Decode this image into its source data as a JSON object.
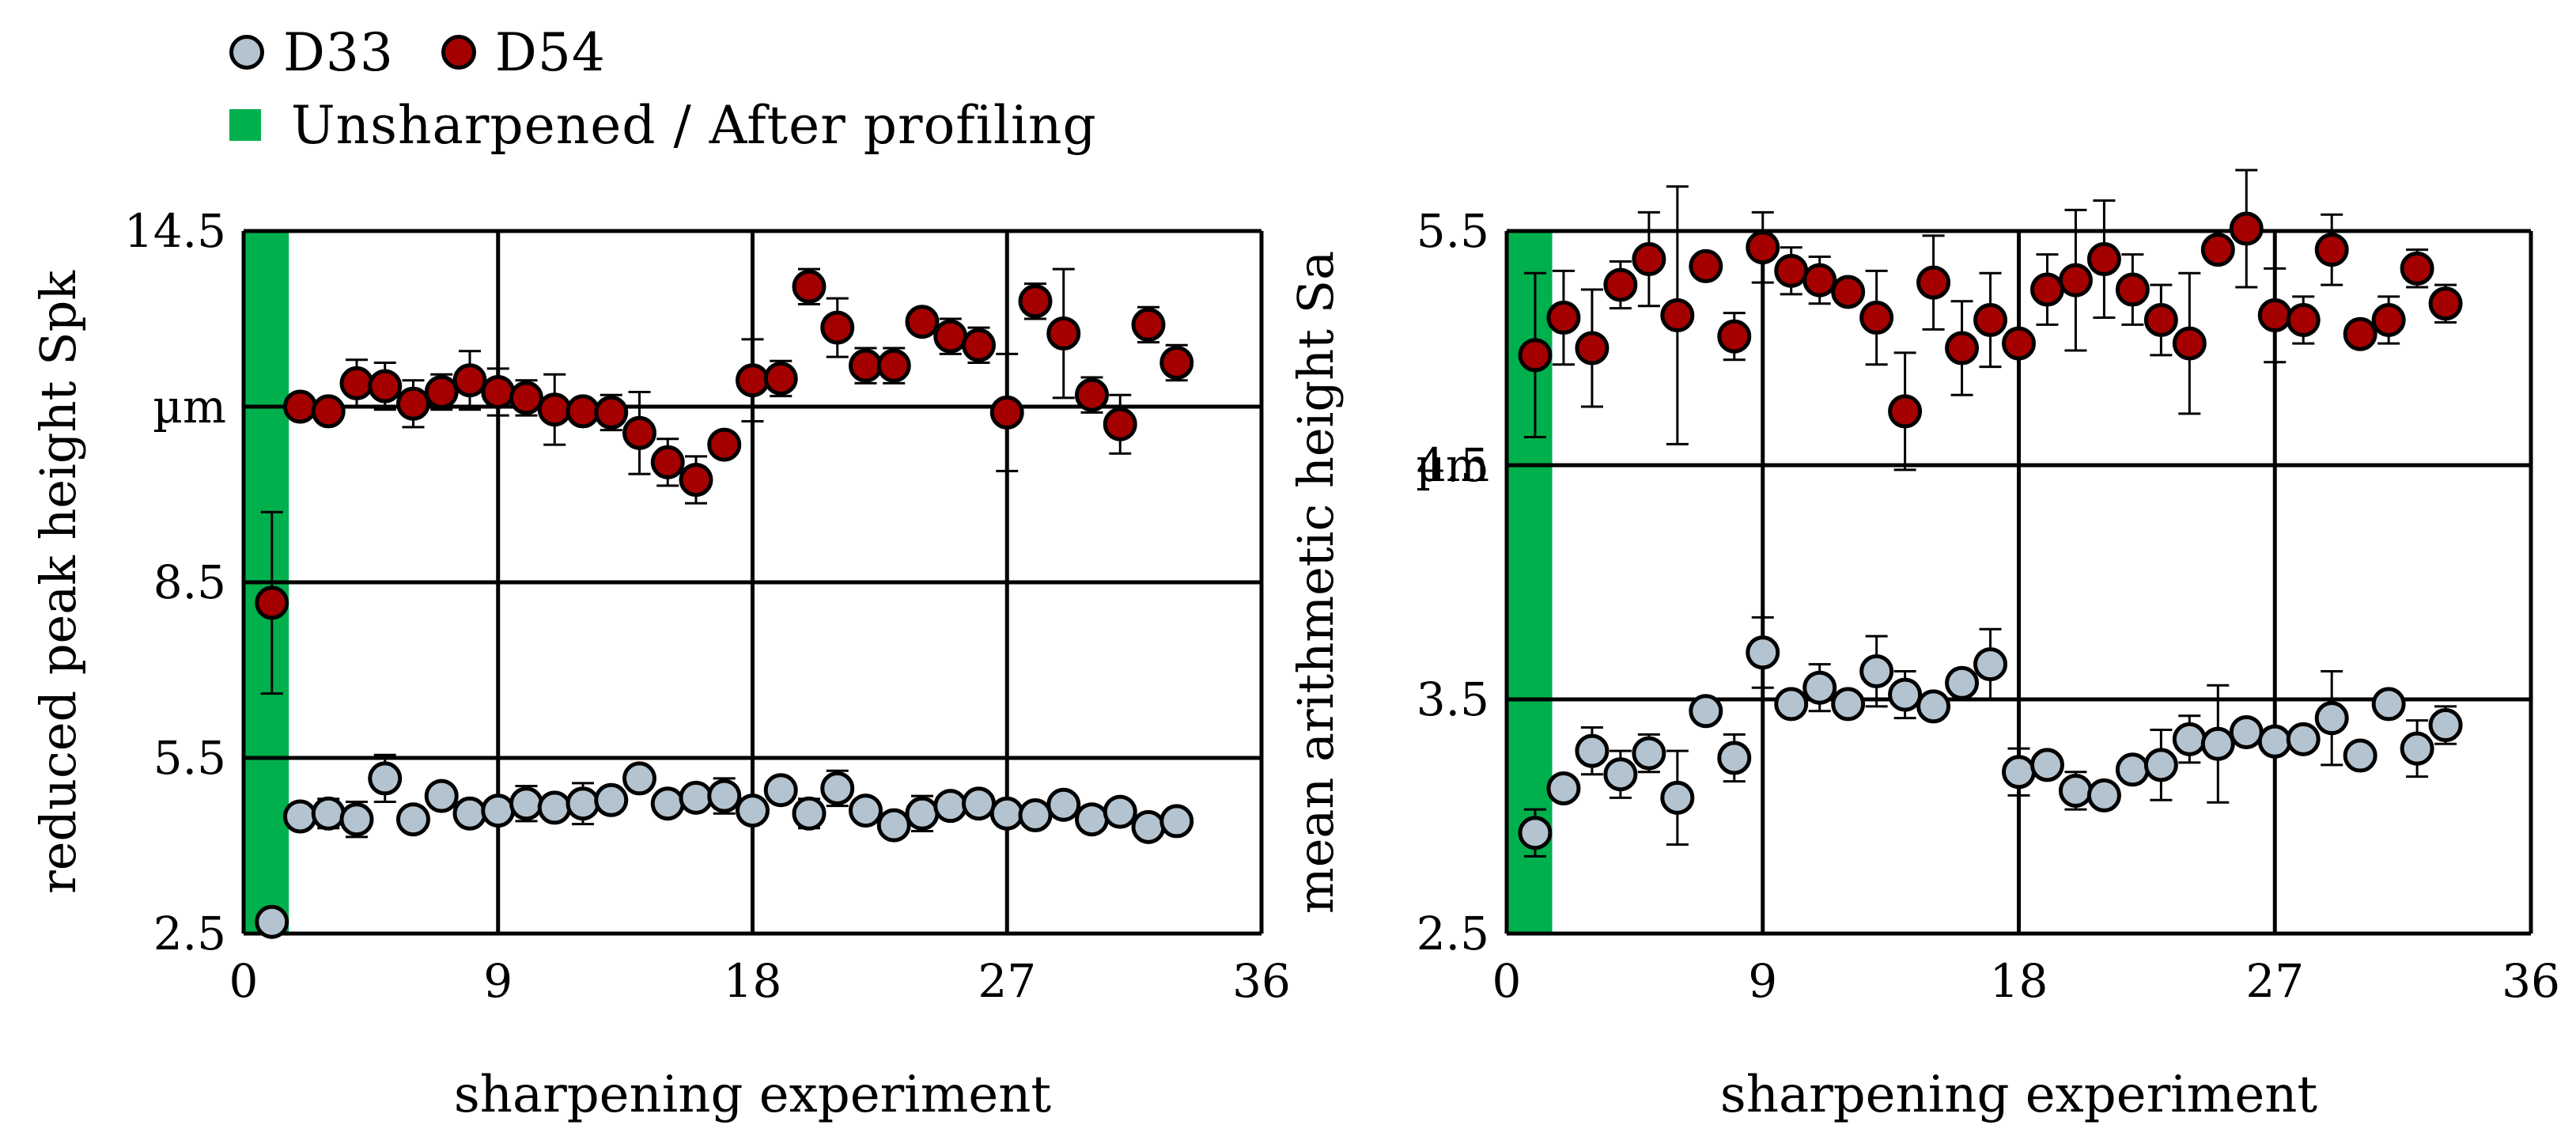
{
  "legend": {
    "series1": "D33",
    "series2": "D54",
    "band": "Unsharpened / After profiling"
  },
  "colors": {
    "d33_fill": "#b3c3cf",
    "d54_fill": "#a40000",
    "band": "#00b04c",
    "grid": "#000000"
  },
  "chart_data": [
    {
      "type": "scatter",
      "title": "",
      "xlabel": "sharpening experiment",
      "ylabel": "reduced peak height Spk",
      "unit_label": "µm",
      "xlim": [
        0,
        36
      ],
      "ylim": [
        2.5,
        14.5
      ],
      "xticks": [
        "0",
        "9",
        "18",
        "27",
        "36"
      ],
      "yticks": [
        {
          "v": 2.5,
          "label": "2.5"
        },
        {
          "v": 5.5,
          "label": "5.5"
        },
        {
          "v": 8.5,
          "label": "8.5"
        },
        {
          "v": 14.5,
          "label": "14.5"
        }
      ],
      "gridlines_y": [
        5.5,
        8.5,
        11.5,
        14.5
      ],
      "band": [
        0,
        1.6
      ],
      "x": [
        1,
        2,
        3,
        4,
        5,
        6,
        7,
        8,
        9,
        10,
        11,
        12,
        13,
        14,
        15,
        16,
        17,
        18,
        19,
        20,
        21,
        22,
        23,
        24,
        25,
        26,
        27,
        28,
        29,
        30,
        31,
        32,
        33
      ],
      "series": [
        {
          "name": "D33",
          "values": [
            2.7,
            4.5,
            4.55,
            4.45,
            5.15,
            4.45,
            4.85,
            4.55,
            4.6,
            4.72,
            4.65,
            4.72,
            4.78,
            5.15,
            4.72,
            4.82,
            4.85,
            4.6,
            4.95,
            4.55,
            4.98,
            4.6,
            4.35,
            4.55,
            4.68,
            4.72,
            4.55,
            4.52,
            4.7,
            4.45,
            4.58,
            4.32,
            4.42
          ],
          "err": [
            0.1,
            0.2,
            0.25,
            0.3,
            0.4,
            0.15,
            0.2,
            0.15,
            0.15,
            0.3,
            0.2,
            0.35,
            0.15,
            0.1,
            0.15,
            0.2,
            0.3,
            0.2,
            0.15,
            0.25,
            0.3,
            0.2,
            0.2,
            0.3,
            0.2,
            0.15,
            0.2,
            0.1,
            0.1,
            0.2,
            0.2,
            0.1,
            0.1
          ]
        },
        {
          "name": "D54",
          "values": [
            8.15,
            11.5,
            11.42,
            11.9,
            11.85,
            11.55,
            11.75,
            11.95,
            11.75,
            11.65,
            11.45,
            11.42,
            11.4,
            11.05,
            10.55,
            10.25,
            10.85,
            11.95,
            11.98,
            13.55,
            12.85,
            12.2,
            12.2,
            12.95,
            12.7,
            12.55,
            11.4,
            13.3,
            12.75,
            11.7,
            11.2,
            12.9,
            12.25
          ],
          "err": [
            1.55,
            0.2,
            0.1,
            0.4,
            0.4,
            0.4,
            0.3,
            0.5,
            0.4,
            0.3,
            0.6,
            0.2,
            0.3,
            0.7,
            0.4,
            0.4,
            0.2,
            0.7,
            0.3,
            0.3,
            0.5,
            0.3,
            0.3,
            0.15,
            0.3,
            0.3,
            1.0,
            0.3,
            1.1,
            0.3,
            0.5,
            0.3,
            0.3
          ]
        }
      ]
    },
    {
      "type": "scatter",
      "title": "",
      "xlabel": "sharpening experiment",
      "ylabel": "mean arithmetic height Sa",
      "unit_label": "µm",
      "xlim": [
        0,
        36
      ],
      "ylim": [
        2.5,
        5.5
      ],
      "xticks": [
        "0",
        "9",
        "18",
        "27",
        "36"
      ],
      "yticks": [
        {
          "v": 2.5,
          "label": "2.5"
        },
        {
          "v": 3.5,
          "label": "3.5"
        },
        {
          "v": 4.5,
          "label": "4.5"
        },
        {
          "v": 5.5,
          "label": "5.5"
        }
      ],
      "gridlines_y": [
        3.5,
        4.5,
        5.5
      ],
      "band": [
        0,
        1.6
      ],
      "x": [
        1,
        2,
        3,
        4,
        5,
        6,
        7,
        8,
        9,
        10,
        11,
        12,
        13,
        14,
        15,
        16,
        17,
        18,
        19,
        20,
        21,
        22,
        23,
        24,
        25,
        26,
        27,
        28,
        29,
        30,
        31,
        32,
        33
      ],
      "series": [
        {
          "name": "D33",
          "values": [
            2.93,
            3.12,
            3.28,
            3.18,
            3.27,
            3.08,
            3.45,
            3.25,
            3.7,
            3.48,
            3.55,
            3.48,
            3.62,
            3.52,
            3.47,
            3.57,
            3.65,
            3.19,
            3.22,
            3.11,
            3.09,
            3.2,
            3.22,
            3.33,
            3.31,
            3.36,
            3.32,
            3.33,
            3.42,
            3.26,
            3.48,
            3.29,
            3.39
          ],
          "err": [
            0.1,
            0.05,
            0.1,
            0.1,
            0.08,
            0.2,
            0.05,
            0.1,
            0.15,
            0.05,
            0.1,
            0.05,
            0.15,
            0.1,
            0.05,
            0.05,
            0.15,
            0.1,
            0.05,
            0.08,
            0.05,
            0.05,
            0.15,
            0.1,
            0.25,
            0.05,
            0.05,
            0.05,
            0.2,
            0.05,
            0.05,
            0.12,
            0.08
          ]
        },
        {
          "name": "D54",
          "values": [
            4.97,
            5.13,
            5.0,
            5.27,
            5.38,
            5.14,
            5.35,
            5.05,
            5.43,
            5.33,
            5.29,
            5.24,
            5.13,
            4.73,
            5.28,
            5.0,
            5.12,
            5.02,
            5.25,
            5.29,
            5.38,
            5.25,
            5.12,
            5.02,
            5.42,
            5.51,
            5.14,
            5.12,
            5.42,
            5.06,
            5.12,
            5.34,
            5.19
          ],
          "err": [
            0.35,
            0.2,
            0.25,
            0.1,
            0.2,
            0.55,
            0.05,
            0.1,
            0.15,
            0.1,
            0.1,
            0.05,
            0.2,
            0.25,
            0.2,
            0.2,
            0.2,
            0.05,
            0.15,
            0.3,
            0.25,
            0.15,
            0.15,
            0.3,
            0.05,
            0.25,
            0.2,
            0.1,
            0.15,
            0.05,
            0.1,
            0.08,
            0.08
          ]
        }
      ]
    }
  ]
}
